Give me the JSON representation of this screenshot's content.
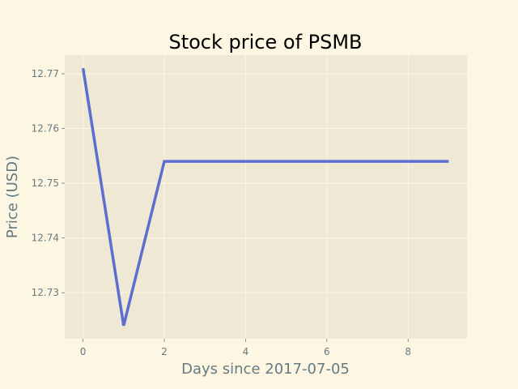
{
  "chart_data": {
    "type": "line",
    "title": "Stock price of PSMB",
    "xlabel": "Days since 2017-07-05",
    "ylabel": "Price (USD)",
    "x": [
      0,
      1,
      2,
      3,
      4,
      5,
      6,
      7,
      8,
      9
    ],
    "series": [
      {
        "values": [
          12.771,
          12.724,
          12.754,
          12.754,
          12.754,
          12.754,
          12.754,
          12.754,
          12.754,
          12.754
        ]
      }
    ],
    "xlim": [
      -0.45,
      9.45
    ],
    "ylim": [
      12.7216,
      12.7734
    ],
    "xticks": [
      "0",
      "2",
      "4",
      "6",
      "8"
    ],
    "yticks": [
      "12.73",
      "12.74",
      "12.75",
      "12.76",
      "12.77"
    ],
    "grid": true,
    "colors": {
      "page_background": "#fdf6e3",
      "plot_background": "#eee8d5",
      "grid": "#fdf6e3",
      "line": "#5a6fd1",
      "text": "#657b83"
    }
  }
}
